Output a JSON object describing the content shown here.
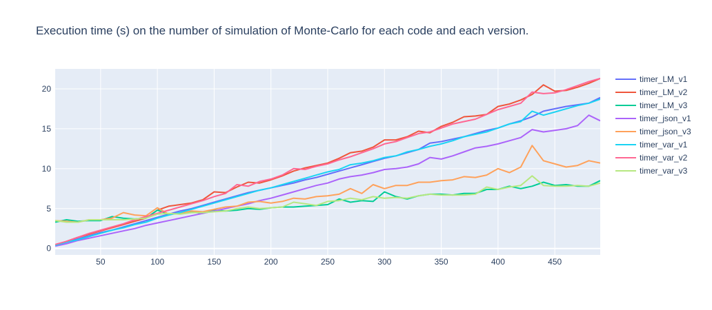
{
  "chart_data": {
    "type": "line",
    "title": "Execution time (s) on the number of simulation of Monte-Carlo for each code and each version.",
    "xlabel": "",
    "ylabel": "",
    "xlim": [
      10,
      490
    ],
    "ylim": [
      -0.8,
      22.5
    ],
    "xticks": [
      50,
      100,
      150,
      200,
      250,
      300,
      350,
      400,
      450
    ],
    "yticks": [
      0,
      5,
      10,
      15,
      20
    ],
    "grid": true,
    "legend_position": "right",
    "x": [
      10,
      20,
      30,
      40,
      50,
      60,
      70,
      80,
      90,
      100,
      110,
      120,
      130,
      140,
      150,
      160,
      170,
      180,
      190,
      200,
      210,
      220,
      230,
      240,
      250,
      260,
      270,
      280,
      290,
      300,
      310,
      320,
      330,
      340,
      350,
      360,
      370,
      380,
      390,
      400,
      410,
      420,
      430,
      440,
      450,
      460,
      470,
      480,
      490
    ],
    "series": [
      {
        "name": "timer_LM_v1",
        "color": "#636efa",
        "values": [
          0.4,
          0.8,
          1.2,
          1.6,
          2.0,
          2.3,
          2.7,
          3.1,
          3.5,
          3.9,
          4.3,
          4.7,
          5.0,
          5.4,
          5.8,
          6.2,
          6.6,
          7.0,
          7.3,
          7.6,
          7.9,
          8.2,
          8.6,
          8.9,
          9.3,
          9.7,
          10.1,
          10.5,
          10.9,
          11.3,
          11.6,
          12.0,
          12.4,
          13.2,
          13.4,
          13.7,
          14.0,
          14.4,
          14.8,
          15.1,
          15.6,
          16.0,
          16.5,
          17.2,
          17.5,
          17.8,
          18.0,
          18.2,
          18.9
        ]
      },
      {
        "name": "timer_LM_v2",
        "color": "#ef553b",
        "values": [
          0.4,
          0.9,
          1.4,
          1.8,
          2.2,
          2.6,
          3.0,
          3.4,
          3.8,
          4.8,
          5.3,
          5.5,
          5.7,
          6.1,
          7.1,
          7.0,
          7.7,
          8.3,
          8.2,
          8.6,
          9.1,
          9.7,
          10.1,
          10.4,
          10.7,
          11.3,
          12.0,
          12.2,
          12.7,
          13.6,
          13.6,
          14.0,
          14.7,
          14.5,
          15.3,
          15.8,
          16.5,
          16.6,
          16.8,
          17.8,
          18.1,
          18.6,
          19.3,
          20.5,
          19.7,
          19.8,
          20.2,
          20.7,
          21.3
        ]
      },
      {
        "name": "timer_LM_v3",
        "color": "#00cc96",
        "values": [
          3.3,
          3.6,
          3.4,
          3.5,
          3.5,
          4.0,
          3.8,
          3.7,
          3.8,
          4.8,
          4.3,
          4.4,
          4.6,
          4.4,
          4.8,
          4.7,
          4.8,
          5.0,
          4.9,
          5.1,
          5.2,
          5.2,
          5.3,
          5.4,
          5.5,
          6.2,
          5.8,
          6.0,
          5.9,
          7.1,
          6.5,
          6.2,
          6.6,
          6.8,
          6.8,
          6.7,
          6.9,
          6.9,
          7.4,
          7.4,
          7.8,
          7.5,
          7.8,
          8.3,
          7.9,
          8.0,
          7.8,
          7.8,
          8.5
        ]
      },
      {
        "name": "timer_json_v1",
        "color": "#ab63fa",
        "values": [
          0.3,
          0.6,
          1.0,
          1.3,
          1.6,
          1.9,
          2.2,
          2.5,
          2.9,
          3.2,
          3.5,
          3.8,
          4.1,
          4.4,
          4.7,
          5.0,
          5.3,
          5.6,
          6.0,
          6.3,
          6.7,
          7.1,
          7.5,
          7.9,
          8.2,
          8.7,
          9.0,
          9.2,
          9.5,
          9.9,
          10.0,
          10.2,
          10.6,
          11.4,
          11.2,
          11.6,
          12.1,
          12.6,
          12.8,
          13.1,
          13.5,
          13.9,
          14.9,
          14.6,
          14.8,
          15.0,
          15.4,
          16.7,
          16.0
        ]
      },
      {
        "name": "timer_json_v3",
        "color": "#ffa15a",
        "values": [
          3.5,
          3.4,
          3.3,
          3.6,
          3.6,
          3.8,
          4.5,
          4.2,
          4.1,
          5.1,
          4.3,
          4.4,
          4.7,
          4.6,
          4.9,
          5.2,
          5.3,
          5.8,
          5.9,
          5.7,
          5.9,
          6.3,
          6.2,
          6.5,
          6.6,
          6.8,
          7.5,
          6.9,
          8.0,
          7.5,
          7.9,
          7.9,
          8.3,
          8.3,
          8.5,
          8.6,
          9.0,
          8.9,
          9.2,
          10.0,
          9.5,
          10.2,
          12.9,
          11.0,
          10.6,
          10.2,
          10.4,
          11.0,
          10.7
        ]
      },
      {
        "name": "timer_var_v1",
        "color": "#19d3f3",
        "values": [
          0.4,
          0.8,
          1.1,
          1.5,
          1.9,
          2.3,
          2.6,
          3.0,
          3.3,
          3.8,
          4.2,
          4.5,
          4.9,
          5.3,
          5.7,
          6.1,
          6.5,
          6.9,
          7.3,
          7.6,
          8.0,
          8.4,
          8.8,
          9.2,
          9.6,
          9.9,
          10.5,
          10.7,
          11.0,
          11.4,
          11.6,
          12.1,
          12.4,
          12.8,
          13.1,
          13.5,
          14.0,
          14.3,
          14.6,
          15.1,
          15.6,
          15.9,
          17.2,
          16.7,
          17.1,
          17.5,
          17.9,
          18.2,
          18.7
        ]
      },
      {
        "name": "timer_var_v2",
        "color": "#ff6692",
        "values": [
          0.5,
          0.9,
          1.4,
          1.9,
          2.3,
          2.7,
          3.1,
          3.6,
          4.0,
          4.4,
          4.8,
          5.2,
          5.6,
          6.0,
          6.5,
          6.9,
          8.0,
          7.8,
          8.4,
          8.7,
          9.2,
          10.0,
          9.9,
          10.3,
          10.6,
          11.1,
          11.5,
          12.0,
          12.5,
          13.1,
          13.4,
          13.9,
          14.4,
          14.6,
          15.1,
          15.6,
          15.9,
          16.2,
          16.8,
          17.4,
          17.8,
          18.2,
          19.6,
          19.4,
          19.5,
          19.9,
          20.4,
          20.9,
          21.3
        ]
      },
      {
        "name": "timer_var_v3",
        "color": "#b6e880",
        "values": [
          3.5,
          3.3,
          3.3,
          3.6,
          3.6,
          3.6,
          3.6,
          3.7,
          3.8,
          4.3,
          4.4,
          4.3,
          4.5,
          4.5,
          4.6,
          4.7,
          5.0,
          5.2,
          5.0,
          5.1,
          5.2,
          5.8,
          5.6,
          5.4,
          5.9,
          6.0,
          6.3,
          6.1,
          6.5,
          6.3,
          6.4,
          6.3,
          6.6,
          6.8,
          6.7,
          6.7,
          6.7,
          6.8,
          7.7,
          7.4,
          7.7,
          7.9,
          9.1,
          7.9,
          7.8,
          7.8,
          7.9,
          7.8,
          8.2
        ]
      }
    ]
  }
}
